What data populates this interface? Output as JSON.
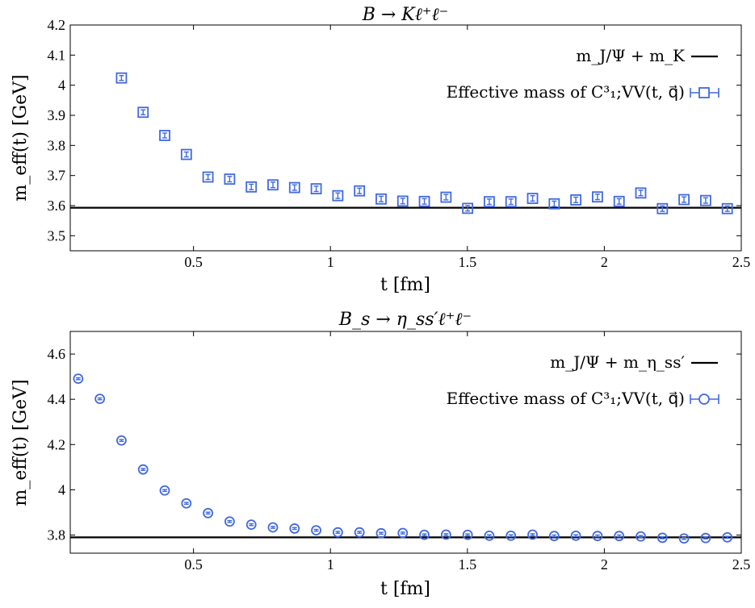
{
  "chart_data": [
    {
      "type": "scatter",
      "title": "B → Kℓ⁺ℓ⁻",
      "xlabel": "t [fm]",
      "ylabel": "m_eff(t) [GeV]",
      "xlim": [
        0.05,
        2.5
      ],
      "ylim": [
        3.45,
        4.2
      ],
      "xticks": [
        0.5,
        1,
        1.5,
        2,
        2.5
      ],
      "xtick_labels": [
        "0.5",
        "1",
        "1.5",
        "2",
        "2.5"
      ],
      "yticks": [
        3.5,
        3.6,
        3.7,
        3.8,
        3.9,
        4.0,
        4.1,
        4.2
      ],
      "ytick_labels": [
        "3.5",
        "3.6",
        "3.7",
        "3.8",
        "3.9",
        "4",
        "4.1",
        "4.2"
      ],
      "marker": "square",
      "color": "#4169E1",
      "reference_line": {
        "label": "m_J/Ψ + m_K",
        "y": 3.593
      },
      "series": [
        {
          "name": "Effective mass of C³₁;VV(t, q⃗)",
          "x": [
            0.237,
            0.316,
            0.395,
            0.474,
            0.553,
            0.632,
            0.711,
            0.79,
            0.869,
            0.948,
            1.027,
            1.106,
            1.185,
            1.264,
            1.343,
            1.422,
            1.501,
            1.58,
            1.659,
            1.738,
            1.817,
            1.896,
            1.975,
            2.054,
            2.133,
            2.212,
            2.291,
            2.37,
            2.449
          ],
          "y": [
            4.024,
            3.91,
            3.833,
            3.77,
            3.695,
            3.688,
            3.662,
            3.669,
            3.66,
            3.656,
            3.633,
            3.649,
            3.622,
            3.615,
            3.614,
            3.628,
            3.591,
            3.613,
            3.613,
            3.624,
            3.606,
            3.619,
            3.629,
            3.614,
            3.642,
            3.59,
            3.62,
            3.617,
            3.59
          ],
          "err": [
            0.008,
            0.008,
            0.008,
            0.008,
            0.008,
            0.009,
            0.009,
            0.009,
            0.009,
            0.009,
            0.009,
            0.009,
            0.009,
            0.009,
            0.009,
            0.009,
            0.009,
            0.009,
            0.009,
            0.009,
            0.009,
            0.009,
            0.009,
            0.009,
            0.009,
            0.009,
            0.009,
            0.009,
            0.009
          ]
        }
      ],
      "legend": "top-right",
      "grid": false
    },
    {
      "type": "scatter",
      "title": "B_s → η_ss′ℓ⁺ℓ⁻",
      "xlabel": "t [fm]",
      "ylabel": "m_eff(t) [GeV]",
      "xlim": [
        0.05,
        2.5
      ],
      "ylim": [
        3.72,
        4.7
      ],
      "xticks": [
        0.5,
        1,
        1.5,
        2,
        2.5
      ],
      "xtick_labels": [
        "0.5",
        "1",
        "1.5",
        "2",
        "2.5"
      ],
      "yticks": [
        3.8,
        4.0,
        4.2,
        4.4,
        4.6
      ],
      "ytick_labels": [
        "3.8",
        "4",
        "4.2",
        "4.4",
        "4.6"
      ],
      "marker": "circle",
      "color": "#4169E1",
      "reference_line": {
        "label": "m_J/Ψ + m_η_ss′",
        "y": 3.79
      },
      "series": [
        {
          "name": "Effective mass of C³₁;VV(t, q⃗)",
          "x": [
            0.079,
            0.158,
            0.237,
            0.316,
            0.395,
            0.474,
            0.553,
            0.632,
            0.711,
            0.79,
            0.869,
            0.948,
            1.027,
            1.106,
            1.185,
            1.264,
            1.343,
            1.422,
            1.501,
            1.58,
            1.659,
            1.738,
            1.817,
            1.896,
            1.975,
            2.054,
            2.133,
            2.212,
            2.291,
            2.37,
            2.449
          ],
          "y": [
            4.491,
            4.402,
            4.218,
            4.09,
            3.997,
            3.94,
            3.897,
            3.86,
            3.846,
            3.834,
            3.829,
            3.821,
            3.812,
            3.812,
            3.808,
            3.809,
            3.801,
            3.802,
            3.801,
            3.797,
            3.797,
            3.802,
            3.796,
            3.797,
            3.796,
            3.796,
            3.794,
            3.788,
            3.785,
            3.787,
            3.79
          ],
          "err": [
            0.004,
            0.004,
            0.004,
            0.004,
            0.004,
            0.004,
            0.004,
            0.004,
            0.004,
            0.004,
            0.004,
            0.004,
            0.004,
            0.004,
            0.004,
            0.004,
            0.004,
            0.004,
            0.004,
            0.004,
            0.004,
            0.004,
            0.004,
            0.004,
            0.004,
            0.004,
            0.004,
            0.004,
            0.004,
            0.004,
            0.004
          ]
        }
      ],
      "legend": "top-right",
      "grid": false
    }
  ]
}
